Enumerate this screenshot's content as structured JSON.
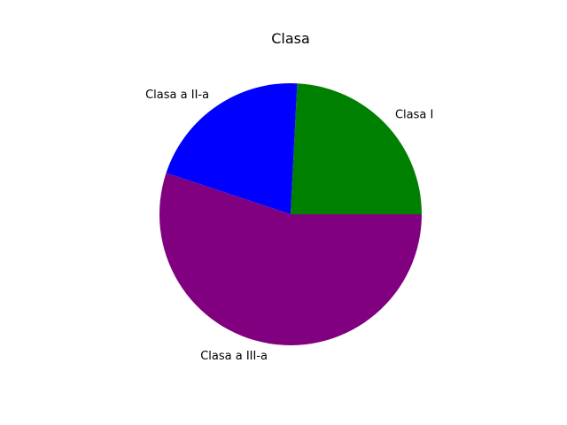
{
  "chart_data": {
    "type": "pie",
    "title": "Clasa",
    "categories": [
      "Clasa I",
      "Clasa a II-a",
      "Clasa a III-a"
    ],
    "values": [
      24.2,
      20.7,
      55.1
    ],
    "colors": [
      "#008000",
      "#0000ff",
      "#800080"
    ],
    "start_angle_deg": 0,
    "direction": "counterclockwise",
    "legend": "none"
  }
}
